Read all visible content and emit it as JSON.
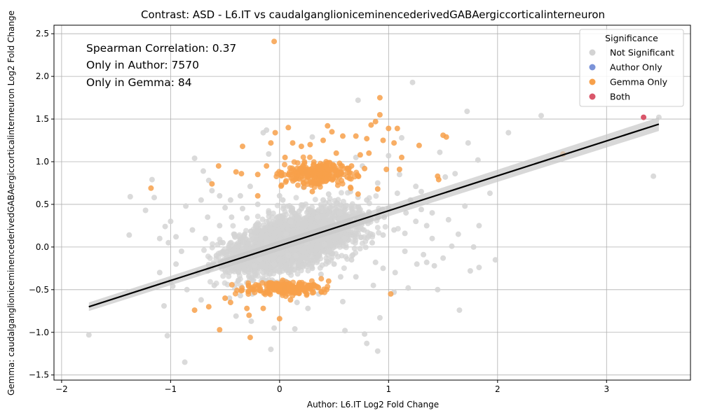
{
  "chart_data": {
    "type": "scatter",
    "title": "Contrast: ASD - L6.IT vs caudalganglioniceminencederivedGABAergiccorticalinterneuron",
    "xlabel": "Author: L6.IT Log2 Fold Change",
    "ylabel": "Gemma: caudalganglioniceminencederivedGABAergiccorticalinterneuron Log2 Fold Change",
    "xlim": [
      -2.07,
      3.77
    ],
    "ylim": [
      -1.56,
      2.6
    ],
    "x_ticks": [
      -2,
      -1,
      0,
      1,
      2,
      3
    ],
    "x_tick_labels": [
      "−2",
      "−1",
      "0",
      "1",
      "2",
      "3"
    ],
    "y_ticks": [
      -1.5,
      -1.0,
      -0.5,
      0.0,
      0.5,
      1.0,
      1.5,
      2.0,
      2.5
    ],
    "y_tick_labels": [
      "−1.5",
      "−1.0",
      "−0.5",
      "0.0",
      "0.5",
      "1.0",
      "1.5",
      "2.0",
      "2.5"
    ],
    "grid": true,
    "annotations": [
      "Spearman Correlation: 0.37",
      "Only in Author: 7570",
      "Only in Gemma: 84"
    ],
    "legend": {
      "title": "Significance",
      "placement": "top-right",
      "entries": [
        {
          "label": "Not Significant",
          "color": "#d3d3d3"
        },
        {
          "label": "Author Only",
          "color": "#7b93d8"
        },
        {
          "label": "Gemma Only",
          "color": "#f7a04a"
        },
        {
          "label": "Both",
          "color": "#d9566a"
        }
      ]
    },
    "regression_line": {
      "x": [
        -1.75,
        3.48
      ],
      "y": [
        -0.7,
        1.44
      ],
      "color": "#000000"
    },
    "series": [
      {
        "name": "Not Significant",
        "color": "#d3d3d3",
        "points": [
          [
            -1.75,
            -1.03
          ],
          [
            -1.37,
            0.59
          ],
          [
            -1.38,
            0.14
          ],
          [
            -1.23,
            0.43
          ],
          [
            -1.17,
            0.79
          ],
          [
            -1.15,
            0.58
          ],
          [
            -1.1,
            0.1
          ],
          [
            -1.05,
            0.24
          ],
          [
            -1.02,
            0.05
          ],
          [
            -1.0,
            0.3
          ],
          [
            -1.03,
            -1.04
          ],
          [
            -1.06,
            -0.69
          ],
          [
            -0.98,
            -0.46
          ],
          [
            -0.95,
            0.12
          ],
          [
            -0.87,
            -1.35
          ],
          [
            -0.86,
            0.48
          ],
          [
            -0.78,
            1.04
          ],
          [
            -0.72,
            0.55
          ],
          [
            -0.7,
            0.89
          ],
          [
            -0.65,
            0.78
          ],
          [
            -0.62,
            0.66
          ],
          [
            -0.55,
            0.6
          ],
          [
            -0.5,
            0.46
          ],
          [
            -0.45,
            0.55
          ],
          [
            -0.4,
            -0.81
          ],
          [
            -0.36,
            -0.57
          ],
          [
            -0.34,
            0.45
          ],
          [
            -0.3,
            0.34
          ],
          [
            -0.27,
            0.71
          ],
          [
            -0.26,
            -0.87
          ],
          [
            -0.23,
            -0.22
          ],
          [
            -0.18,
            -0.14
          ],
          [
            -0.15,
            1.34
          ],
          [
            -0.12,
            1.37
          ],
          [
            -0.1,
            1.09
          ],
          [
            -0.08,
            -1.2
          ],
          [
            -0.05,
            -0.95
          ],
          [
            -0.02,
            0.35
          ],
          [
            0.03,
            0.55
          ],
          [
            0.08,
            -0.1
          ],
          [
            0.12,
            -0.48
          ],
          [
            0.14,
            -0.96
          ],
          [
            0.18,
            0.42
          ],
          [
            0.22,
            0.7
          ],
          [
            0.26,
            -0.72
          ],
          [
            0.3,
            1.29
          ],
          [
            0.33,
            0.19
          ],
          [
            0.38,
            -0.32
          ],
          [
            0.41,
            0.03
          ],
          [
            0.45,
            0.62
          ],
          [
            0.5,
            -0.2
          ],
          [
            0.54,
            0.84
          ],
          [
            0.58,
            -0.64
          ],
          [
            0.6,
            -0.98
          ],
          [
            0.63,
            0.21
          ],
          [
            0.66,
            0.48
          ],
          [
            0.7,
            1.05
          ],
          [
            0.72,
            1.72
          ],
          [
            0.78,
            -1.02
          ],
          [
            0.8,
            -1.13
          ],
          [
            0.84,
            0.33
          ],
          [
            0.88,
            -0.18
          ],
          [
            0.9,
            -1.22
          ],
          [
            0.92,
            -0.83
          ],
          [
            0.95,
            0.14
          ],
          [
            1.0,
            1.07
          ],
          [
            1.05,
            -0.53
          ],
          [
            1.08,
            0.63
          ],
          [
            1.12,
            1.28
          ],
          [
            1.15,
            0.16
          ],
          [
            1.18,
            -0.48
          ],
          [
            1.22,
            1.93
          ],
          [
            1.25,
            0.71
          ],
          [
            1.3,
            0.44
          ],
          [
            1.32,
            -0.09
          ],
          [
            1.35,
            -0.18
          ],
          [
            1.4,
            0.4
          ],
          [
            1.42,
            -0.22
          ],
          [
            1.45,
            -0.5
          ],
          [
            1.47,
            1.11
          ],
          [
            1.5,
            -0.13
          ],
          [
            1.52,
            0.82
          ],
          [
            1.55,
            0.32
          ],
          [
            1.58,
            0.01
          ],
          [
            1.61,
            0.86
          ],
          [
            1.64,
            0.15
          ],
          [
            1.65,
            -0.74
          ],
          [
            1.7,
            0.48
          ],
          [
            1.72,
            1.59
          ],
          [
            1.73,
            1.22
          ],
          [
            1.75,
            -0.28
          ],
          [
            1.78,
            0.0
          ],
          [
            1.82,
            1.02
          ],
          [
            1.83,
            0.25
          ],
          [
            1.83,
            -0.24
          ],
          [
            1.93,
            0.63
          ],
          [
            1.98,
            -0.15
          ],
          [
            2.1,
            1.34
          ],
          [
            2.4,
            1.54
          ],
          [
            3.43,
            0.83
          ],
          [
            3.48,
            1.52
          ],
          [
            -0.9,
            -0.05
          ],
          [
            -0.8,
            0.2
          ],
          [
            -0.75,
            -0.3
          ],
          [
            -0.68,
            0.1
          ],
          [
            -0.6,
            -0.45
          ],
          [
            -0.55,
            0.25
          ],
          [
            -0.48,
            -0.15
          ],
          [
            -0.44,
            0.35
          ],
          [
            -0.38,
            -0.4
          ],
          [
            -0.32,
            0.15
          ],
          [
            -0.25,
            -0.55
          ],
          [
            -0.2,
            0.5
          ],
          [
            -0.15,
            -0.3
          ],
          [
            -0.1,
            0.4
          ],
          [
            -0.05,
            -0.2
          ],
          [
            0.0,
            0.6
          ],
          [
            0.05,
            -0.4
          ],
          [
            0.1,
            0.3
          ],
          [
            0.15,
            -0.1
          ],
          [
            0.2,
            0.45
          ],
          [
            0.25,
            0.05
          ],
          [
            0.3,
            -0.25
          ],
          [
            0.35,
            0.35
          ],
          [
            0.4,
            0.55
          ],
          [
            0.45,
            -0.05
          ],
          [
            0.5,
            0.25
          ],
          [
            0.55,
            0.4
          ],
          [
            0.6,
            0.1
          ],
          [
            0.65,
            0.65
          ],
          [
            0.7,
            -0.35
          ],
          [
            0.75,
            0.3
          ],
          [
            0.8,
            0.55
          ],
          [
            0.85,
            0.05
          ],
          [
            0.9,
            0.75
          ],
          [
            0.95,
            -0.25
          ],
          [
            1.0,
            0.45
          ],
          [
            1.05,
            0.2
          ],
          [
            1.1,
            0.85
          ],
          [
            1.15,
            -0.05
          ],
          [
            1.2,
            0.55
          ],
          [
            1.25,
            0.3
          ],
          [
            1.3,
            0.65
          ],
          [
            1.35,
            0.25
          ],
          [
            1.4,
            0.1
          ],
          [
            -1.1,
            -0.3
          ],
          [
            -1.0,
            -0.4
          ],
          [
            -0.95,
            -0.2
          ],
          [
            -0.85,
            -0.5
          ],
          [
            -0.72,
            -0.62
          ],
          [
            -0.66,
            0.35
          ],
          [
            -0.58,
            -0.1
          ],
          [
            -0.52,
            0.05
          ],
          [
            -0.46,
            -0.6
          ],
          [
            -0.42,
            0.15
          ],
          [
            -0.36,
            0.6
          ],
          [
            -0.28,
            -0.1
          ],
          [
            -0.22,
            0.25
          ],
          [
            -0.12,
            0.05
          ],
          [
            -0.02,
            -0.5
          ],
          [
            0.06,
            0.15
          ],
          [
            0.16,
            -0.65
          ],
          [
            0.28,
            0.85
          ],
          [
            0.36,
            -0.55
          ],
          [
            0.46,
            0.9
          ],
          [
            0.56,
            -0.35
          ],
          [
            0.66,
            -0.15
          ],
          [
            0.76,
            0.95
          ],
          [
            0.86,
            -0.45
          ],
          [
            0.96,
            0.35
          ],
          [
            1.06,
            -0.3
          ],
          [
            1.16,
            0.4
          ],
          [
            1.26,
            -0.2
          ]
        ]
      },
      {
        "name": "Gemma Only",
        "color": "#f7a04a",
        "points": [
          [
            -1.18,
            0.69
          ],
          [
            -0.78,
            -0.74
          ],
          [
            -0.65,
            -0.7
          ],
          [
            -0.62,
            0.74
          ],
          [
            -0.56,
            0.95
          ],
          [
            -0.55,
            -0.97
          ],
          [
            -0.5,
            -0.6
          ],
          [
            -0.45,
            -0.65
          ],
          [
            -0.4,
            0.88
          ],
          [
            -0.35,
            0.86
          ],
          [
            -0.34,
            1.18
          ],
          [
            -0.3,
            -0.72
          ],
          [
            -0.28,
            -0.8
          ],
          [
            -0.27,
            -1.06
          ],
          [
            -0.2,
            0.85
          ],
          [
            -0.15,
            -0.72
          ],
          [
            -0.12,
            0.95
          ],
          [
            -0.08,
            1.22
          ],
          [
            -0.05,
            2.41
          ],
          [
            -0.04,
            1.34
          ],
          [
            0.0,
            -0.84
          ],
          [
            0.05,
            1.05
          ],
          [
            0.08,
            1.4
          ],
          [
            0.1,
            -0.62
          ],
          [
            0.12,
            1.22
          ],
          [
            0.16,
            0.92
          ],
          [
            0.2,
            1.18
          ],
          [
            0.24,
            0.88
          ],
          [
            0.28,
            1.2
          ],
          [
            0.32,
            -0.45
          ],
          [
            0.36,
            0.95
          ],
          [
            0.4,
            1.25
          ],
          [
            0.44,
            1.42
          ],
          [
            0.48,
            1.35
          ],
          [
            0.52,
            1.1
          ],
          [
            0.58,
            1.3
          ],
          [
            0.62,
            0.82
          ],
          [
            0.66,
            0.95
          ],
          [
            0.7,
            1.3
          ],
          [
            0.74,
            1.08
          ],
          [
            0.78,
            0.92
          ],
          [
            0.8,
            1.27
          ],
          [
            0.84,
            1.43
          ],
          [
            0.88,
            1.47
          ],
          [
            0.9,
            0.68
          ],
          [
            0.92,
            1.75
          ],
          [
            0.92,
            1.55
          ],
          [
            0.95,
            1.25
          ],
          [
            0.98,
            0.91
          ],
          [
            1.0,
            1.39
          ],
          [
            1.02,
            -0.55
          ],
          [
            1.05,
            1.22
          ],
          [
            1.08,
            1.39
          ],
          [
            1.1,
            0.91
          ],
          [
            1.12,
            1.05
          ],
          [
            1.28,
            1.19
          ],
          [
            1.45,
            0.83
          ],
          [
            1.46,
            0.79
          ],
          [
            1.5,
            1.31
          ],
          [
            1.53,
            1.29
          ],
          [
            2.6,
            1.09
          ],
          [
            -0.2,
            0.6
          ],
          [
            0.15,
            0.8
          ],
          [
            0.25,
            -0.55
          ],
          [
            0.35,
            0.75
          ],
          [
            0.45,
            -0.4
          ],
          [
            0.55,
            0.98
          ],
          [
            0.65,
            0.7
          ],
          [
            0.72,
            0.62
          ],
          [
            0.82,
            1.1
          ],
          [
            -0.25,
            -0.5
          ],
          [
            0.05,
            -0.48
          ],
          [
            0.3,
            0.65
          ]
        ]
      },
      {
        "name": "Both",
        "color": "#d9566a",
        "points": [
          [
            3.34,
            1.52
          ]
        ]
      }
    ]
  }
}
